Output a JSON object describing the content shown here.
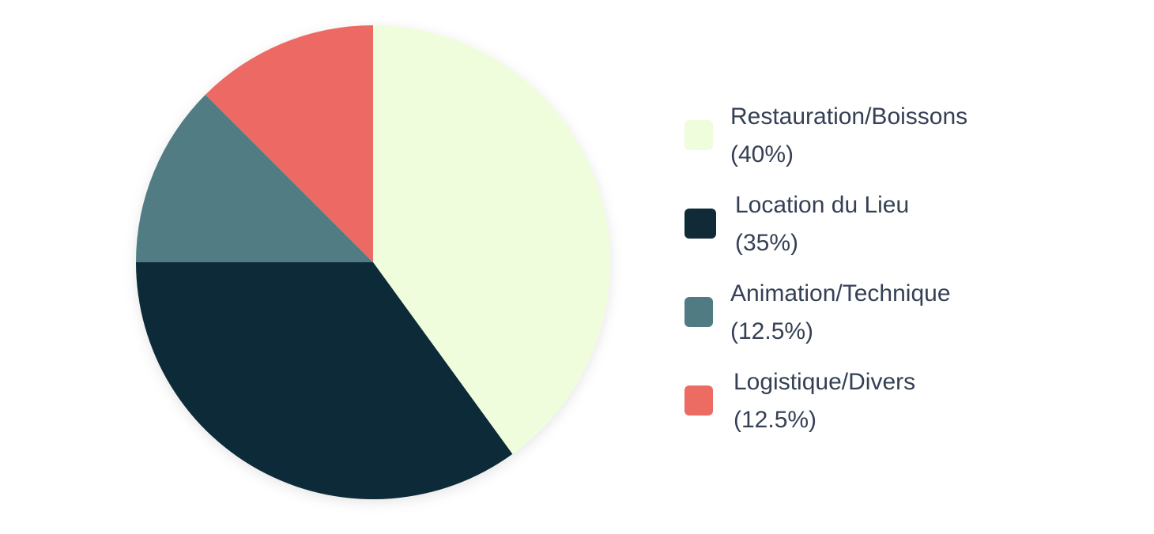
{
  "chart_data": {
    "type": "pie",
    "title": "",
    "slices": [
      {
        "label": "Restauration/Boissons",
        "value": 40,
        "value_label": "(40%)",
        "color": "#EFFDDC"
      },
      {
        "label": "Location du Lieu",
        "value": 35,
        "value_label": "(35%)",
        "color": "#102A38"
      },
      {
        "label": "Animation/Technique",
        "value": 12.5,
        "value_label": "(12.5%)",
        "color": "#517B83"
      },
      {
        "label": "Logistique/Divers",
        "value": 12.5,
        "value_label": "(12.5%)",
        "color": "#EC6B63"
      }
    ],
    "start_angle": "12 o'clock",
    "direction": "clockwise",
    "legend_position": "right"
  },
  "legend": {
    "items": [
      {
        "label": "Restauration/Boissons",
        "value_label": "(40%)",
        "color": "#EFFDDC"
      },
      {
        "label": "Location du Lieu",
        "value_label": "(35%)",
        "color": "#102A38"
      },
      {
        "label": "Animation/Technique",
        "value_label": "(12.5%)",
        "color": "#517B83"
      },
      {
        "label": "Logistique/Divers",
        "value_label": "(12.5%)",
        "color": "#EC6B63"
      }
    ]
  }
}
